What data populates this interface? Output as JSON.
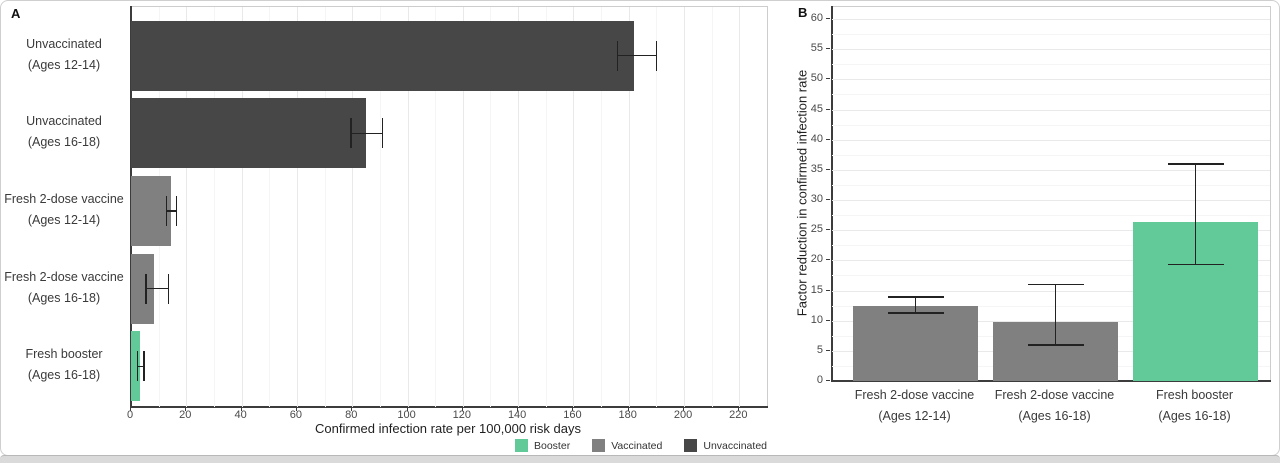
{
  "panels": {
    "a": {
      "tag": "A"
    },
    "b": {
      "tag": "B"
    }
  },
  "chart_data": [
    {
      "panel": "A",
      "type": "bar",
      "orientation": "horizontal",
      "title": "",
      "xlabel": "Confirmed infection rate per 100,000 risk days",
      "ylabel": "",
      "xlim": [
        0,
        230
      ],
      "xticks": [
        0,
        20,
        40,
        60,
        80,
        100,
        120,
        140,
        160,
        180,
        200,
        220
      ],
      "grid": "major+minor",
      "legend_position": "bottom",
      "categories": [
        [
          "Unvaccinated",
          "(Ages 12-14)"
        ],
        [
          "Unvaccinated",
          "(Ages 16-18)"
        ],
        [
          "Fresh 2-dose vaccine",
          "(Ages 12-14)"
        ],
        [
          "Fresh 2-dose vaccine",
          "(Ages 16-18)"
        ],
        [
          "Fresh booster",
          "(Ages 16-18)"
        ]
      ],
      "values": [
        182,
        85,
        14.5,
        8.4,
        3.3
      ],
      "ci_low": [
        176,
        79.5,
        12.8,
        5.4,
        2.3
      ],
      "ci_high": [
        190,
        91,
        16.5,
        13.6,
        4.7
      ],
      "groups": [
        "Unvaccinated",
        "Unvaccinated",
        "Vaccinated",
        "Vaccinated",
        "Booster"
      ]
    },
    {
      "panel": "B",
      "type": "bar",
      "orientation": "vertical",
      "title": "",
      "xlabel": "",
      "ylabel": "Factor reduction in confirmed infection rate",
      "ylim": [
        0,
        62
      ],
      "yticks": [
        0,
        5,
        10,
        15,
        20,
        25,
        30,
        35,
        40,
        45,
        50,
        55,
        60
      ],
      "grid": "major+minor",
      "categories": [
        [
          "Fresh 2-dose vaccine",
          "(Ages 12-14)"
        ],
        [
          "Fresh 2-dose vaccine",
          "(Ages 16-18)"
        ],
        [
          "Fresh booster",
          "(Ages 16-18)"
        ]
      ],
      "values": [
        12.4,
        9.7,
        26.4
      ],
      "ci_low": [
        11.3,
        6,
        19.3
      ],
      "ci_high": [
        13.9,
        16,
        36
      ],
      "groups": [
        "Vaccinated",
        "Vaccinated",
        "Booster"
      ]
    }
  ],
  "legend": {
    "items": [
      {
        "label": "Booster",
        "key": "booster"
      },
      {
        "label": "Vaccinated",
        "key": "vaccinated"
      },
      {
        "label": "Unvaccinated",
        "key": "unvaccinated"
      }
    ]
  },
  "colors": {
    "booster": "#62C999",
    "vaccinated": "#808080",
    "unvaccinated": "#474747",
    "grid_major": "#e9e9e9",
    "grid_minor": "#f5f5f5",
    "axis": "#3c3c3c",
    "errorbar": "#222222"
  }
}
